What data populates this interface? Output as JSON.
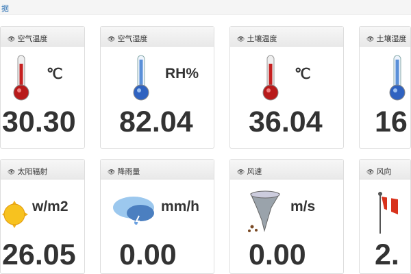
{
  "topbar": {
    "text": "据"
  },
  "cards": [
    {
      "title": "空气温度",
      "icon": "thermometer-red",
      "unit": "℃",
      "value": "30.30"
    },
    {
      "title": "空气湿度",
      "icon": "thermometer-blue",
      "unit": "RH%",
      "value": "82.04"
    },
    {
      "title": "土壤温度",
      "icon": "thermometer-red",
      "unit": "℃",
      "value": "36.04"
    },
    {
      "title": "土壤湿度",
      "icon": "thermometer-blue",
      "unit": "",
      "value": "16"
    },
    {
      "title": "太阳辐射",
      "icon": "sun",
      "unit": "w/m2",
      "value": "26.05"
    },
    {
      "title": "降雨量",
      "icon": "rain-cloud",
      "unit": "mm/h",
      "value": "0.00"
    },
    {
      "title": "风速",
      "icon": "tornado",
      "unit": "m/s",
      "value": "0.00"
    },
    {
      "title": "风向",
      "icon": "windsock",
      "unit": "",
      "value": "2."
    }
  ]
}
